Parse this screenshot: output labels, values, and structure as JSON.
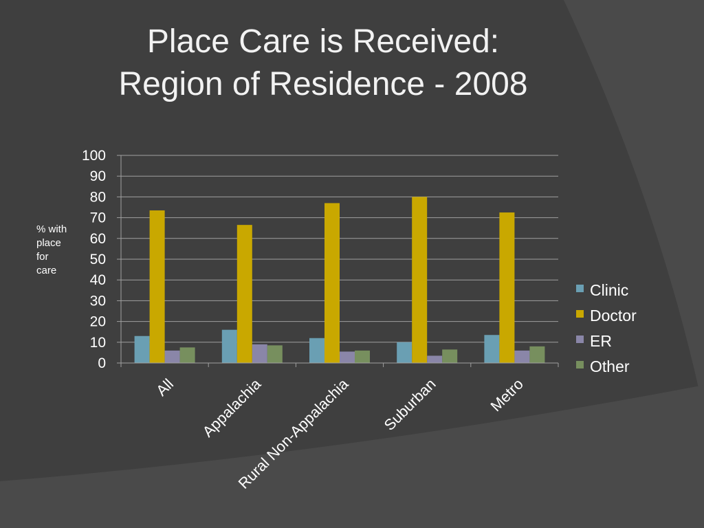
{
  "slide": {
    "title_line1": "Place Care is Received:",
    "title_line2": "Region of Residence - 2008"
  },
  "chart_data": {
    "type": "bar",
    "title": "Place Care is Received: Region of Residence - 2008",
    "ylabel_lines": [
      "% with",
      "place",
      "for",
      "care"
    ],
    "xlabel": "",
    "ylim": [
      0,
      100
    ],
    "yticks": [
      0,
      10,
      20,
      30,
      40,
      50,
      60,
      70,
      80,
      90,
      100
    ],
    "grid": true,
    "legend_position": "right",
    "categories": [
      "All",
      "Appalachia",
      "Rural Non-Appalachia",
      "Suburban",
      "Metro"
    ],
    "series": [
      {
        "name": "Clinic",
        "color": "#6a9fb3",
        "values": [
          13,
          16,
          12,
          10,
          13.5
        ]
      },
      {
        "name": "Doctor",
        "color": "#c9a800",
        "values": [
          73.5,
          66.5,
          77,
          80,
          72.5
        ]
      },
      {
        "name": "ER",
        "color": "#8a86a8",
        "values": [
          6,
          9,
          5.5,
          3.5,
          6
        ]
      },
      {
        "name": "Other",
        "color": "#778f5e",
        "values": [
          7.5,
          8.5,
          6,
          6.5,
          8
        ]
      }
    ]
  }
}
